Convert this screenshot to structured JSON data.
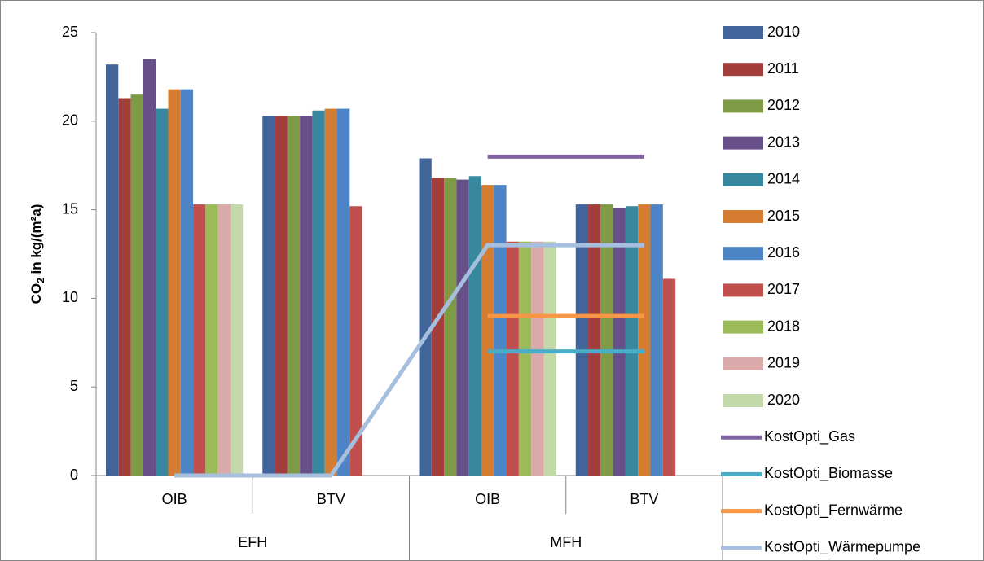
{
  "chart_data": {
    "type": "bar",
    "y_label": {
      "main": "CO",
      "sub": "2",
      "rest": " in kg/(m²a)"
    },
    "categories": [
      "OIB",
      "BTV",
      "OIB",
      "BTV"
    ],
    "groups": [
      "EFH",
      "MFH"
    ],
    "ylim": [
      0,
      25
    ],
    "yticks": [
      0,
      5,
      10,
      15,
      20,
      25
    ],
    "grid": false,
    "legend": "right",
    "series": [
      {
        "name": "2010",
        "type": "bar",
        "color": "#41659b",
        "values": [
          23.2,
          20.3,
          17.9,
          15.3
        ]
      },
      {
        "name": "2011",
        "type": "bar",
        "color": "#a23e3b",
        "values": [
          21.3,
          20.3,
          16.8,
          15.3
        ]
      },
      {
        "name": "2012",
        "type": "bar",
        "color": "#7f9a45",
        "values": [
          21.5,
          20.3,
          16.8,
          15.3
        ]
      },
      {
        "name": "2013",
        "type": "bar",
        "color": "#67508a",
        "values": [
          23.5,
          20.3,
          16.7,
          15.1
        ]
      },
      {
        "name": "2014",
        "type": "bar",
        "color": "#37889f",
        "values": [
          20.7,
          20.6,
          16.9,
          15.2
        ]
      },
      {
        "name": "2015",
        "type": "bar",
        "color": "#d47d32",
        "values": [
          21.8,
          20.7,
          16.4,
          15.3
        ]
      },
      {
        "name": "2016",
        "type": "bar",
        "color": "#4d84c6",
        "values": [
          21.8,
          20.7,
          16.4,
          15.3
        ]
      },
      {
        "name": "2017",
        "type": "bar",
        "color": "#c0504d",
        "values": [
          15.3,
          15.2,
          13.2,
          11.1
        ]
      },
      {
        "name": "2018",
        "type": "bar",
        "color": "#9bbb59",
        "values": [
          15.3,
          null,
          13.2,
          null
        ]
      },
      {
        "name": "2019",
        "type": "bar",
        "color": "#d9aaa9",
        "values": [
          15.3,
          null,
          13.2,
          null
        ]
      },
      {
        "name": "2020",
        "type": "bar",
        "color": "#c4d9a9",
        "values": [
          15.3,
          null,
          13.2,
          null
        ]
      },
      {
        "name": "KostOpti_Gas",
        "type": "line",
        "color": "#8064a2",
        "values": [
          null,
          null,
          18,
          18
        ]
      },
      {
        "name": "KostOpti_Biomasse",
        "type": "line",
        "color": "#4bacc6",
        "values": [
          null,
          null,
          7,
          7
        ]
      },
      {
        "name": "KostOpti_Fernwärme",
        "type": "line",
        "color": "#f79646",
        "values": [
          null,
          null,
          9,
          9
        ]
      },
      {
        "name": "KostOpti_Wärmepumpe",
        "type": "line",
        "color": "#a7bfdf",
        "values": [
          0,
          0,
          13,
          13
        ]
      }
    ]
  }
}
